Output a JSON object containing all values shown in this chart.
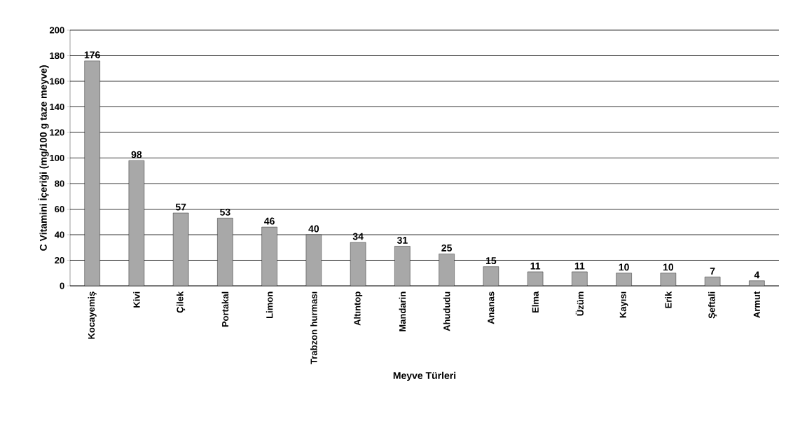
{
  "chart_data": {
    "type": "bar",
    "xlabel": "Meyve Türleri",
    "ylabel": "C Vitamini İçeriği (mg/100 g taze meyve)",
    "categories": [
      "Kocayemiş",
      "Kivi",
      "Çilek",
      "Portakal",
      "Limon",
      "Trabzon hurması",
      "Altıntop",
      "Mandarin",
      "Ahududu",
      "Ananas",
      "Elma",
      "Üzüm",
      "Kayısı",
      "Erik",
      "Şeftali",
      "Armut"
    ],
    "values": [
      176,
      98,
      57,
      53,
      46,
      40,
      34,
      31,
      25,
      15,
      11,
      11,
      10,
      10,
      7,
      4
    ],
    "color": "#a8a8a8",
    "ylim": [
      0,
      200
    ],
    "yticks": [
      0,
      20,
      40,
      60,
      80,
      100,
      120,
      140,
      160,
      180,
      200
    ],
    "grid": "y",
    "data_labels": true
  }
}
